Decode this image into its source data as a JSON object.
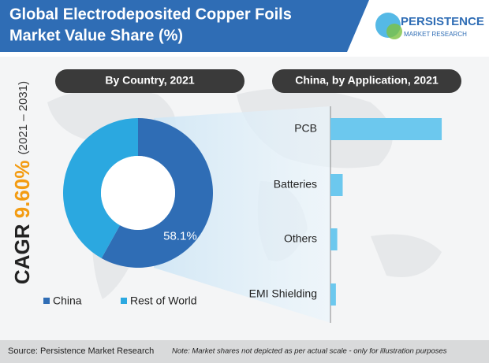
{
  "header": {
    "title_line1": "Global Electrodeposited Copper Foils",
    "title_line2": "Market Value Share (%)",
    "logo_name": "PERSISTENCE",
    "logo_sub": "MARKET RESEARCH"
  },
  "cagr": {
    "label": "CAGR",
    "value": "9.60%",
    "period": "(2021 – 2031)"
  },
  "chart_data": [
    {
      "type": "donut",
      "title": "By Country, 2021",
      "categories": [
        "China",
        "Rest of World"
      ],
      "values": [
        58.1,
        41.9
      ],
      "value_labels": [
        "58.1%",
        null
      ],
      "colors": [
        "#2f6db5",
        "#2ba8e0"
      ]
    },
    {
      "type": "hbar",
      "title": "China, by Application, 2021",
      "categories": [
        "PCB",
        "Batteries",
        "Others",
        "EMI Shielding"
      ],
      "values": [
        82,
        9,
        5,
        4
      ],
      "color": "#6cc8ee",
      "xlim": [
        0,
        100
      ]
    }
  ],
  "footer": {
    "source": "Source: Persistence Market Research",
    "note": "Note: Market shares not depicted as per actual scale - only for illustration purposes"
  }
}
